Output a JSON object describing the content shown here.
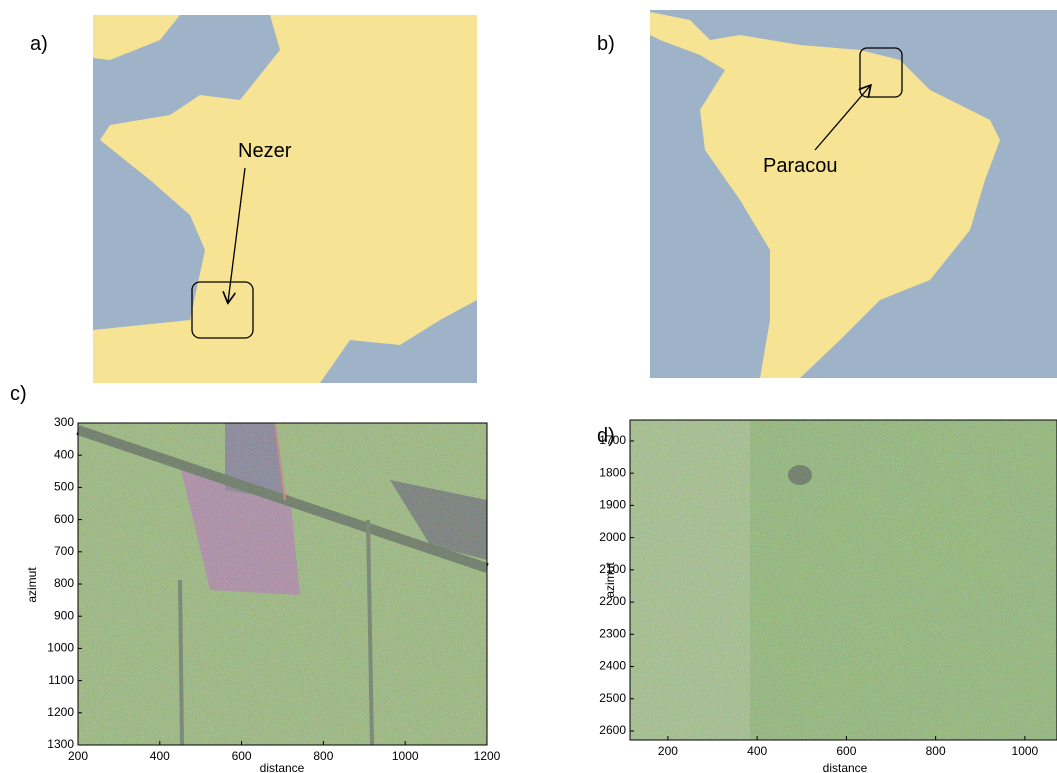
{
  "panels": [
    {
      "label": "a)",
      "annotation": "Nezer"
    },
    {
      "label": "b)",
      "annotation": "Paracou"
    },
    {
      "label": "c)",
      "xlabel": "distance",
      "ylabel": "azimut",
      "xlim": [
        200,
        1200
      ],
      "ylim": [
        300,
        1300
      ],
      "xticks": [
        200,
        400,
        600,
        800,
        1000,
        1200
      ],
      "yticks": [
        300,
        400,
        500,
        600,
        700,
        800,
        900,
        1000,
        1100,
        1200,
        1300
      ]
    },
    {
      "label": "d)",
      "xlabel": "distance",
      "ylabel": "azimut",
      "xlim": [
        115,
        1072
      ],
      "ylim": [
        1635,
        2628
      ],
      "xticks": [
        200,
        400,
        600,
        800,
        1000
      ],
      "yticks": [
        1700,
        1800,
        1900,
        2000,
        2100,
        2200,
        2300,
        2400,
        2500,
        2600
      ]
    }
  ]
}
